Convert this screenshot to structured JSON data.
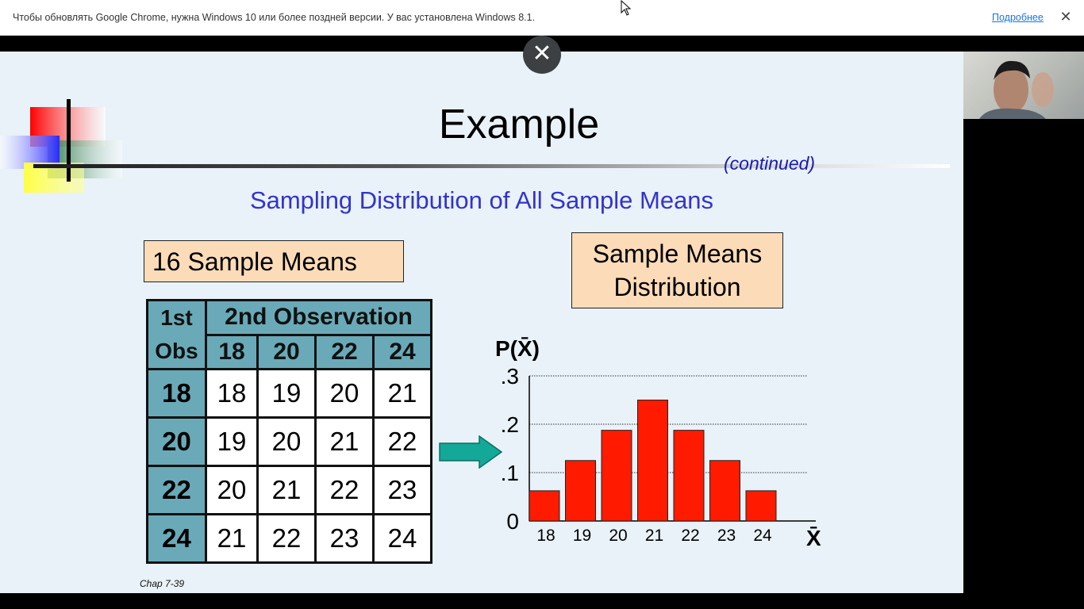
{
  "infobar": {
    "message": "Чтобы обновлять Google Chrome, нужна Windows 10 или более поздней версии. У вас установлена Windows 8.1.",
    "link_label": "Подробнее",
    "close_glyph": "✕"
  },
  "overlay": {
    "close_glyph": "✕"
  },
  "slide": {
    "title": "Example",
    "continued": "(continued)",
    "subtitle": "Sampling Distribution of All Sample Means",
    "box_left": "16 Sample Means",
    "box_right_line1": "Sample Means",
    "box_right_line2": "Distribution",
    "footer": "Chap 7-39",
    "table": {
      "corner_line1": "1st",
      "corner_line2": "Obs",
      "group_header": "2nd Observation",
      "columns": [
        "18",
        "20",
        "22",
        "24"
      ],
      "rows": [
        {
          "header": "18",
          "cells": [
            "18",
            "19",
            "20",
            "21"
          ]
        },
        {
          "header": "20",
          "cells": [
            "19",
            "20",
            "21",
            "22"
          ]
        },
        {
          "header": "22",
          "cells": [
            "20",
            "21",
            "22",
            "23"
          ]
        },
        {
          "header": "24",
          "cells": [
            "21",
            "22",
            "23",
            "24"
          ]
        }
      ]
    }
  },
  "chart_data": {
    "type": "bar",
    "ylabel": "P(X̄)",
    "xlabel": "X̄",
    "categories": [
      "18",
      "19",
      "20",
      "21",
      "22",
      "23",
      "24"
    ],
    "values": [
      0.0625,
      0.125,
      0.1875,
      0.25,
      0.1875,
      0.125,
      0.0625
    ],
    "ylim": [
      0,
      0.3
    ],
    "y_ticks": [
      {
        "value": 0,
        "label": "0"
      },
      {
        "value": 0.1,
        "label": ".1"
      },
      {
        "value": 0.2,
        "label": ".2"
      },
      {
        "value": 0.3,
        "label": ".3"
      }
    ],
    "grid": true,
    "bar_color": "#ff1a00"
  },
  "colors": {
    "table_header": "#6aaab8",
    "label_box": "#fcdcb8",
    "subtitle": "#3333cc",
    "arrow": "#14a898"
  }
}
